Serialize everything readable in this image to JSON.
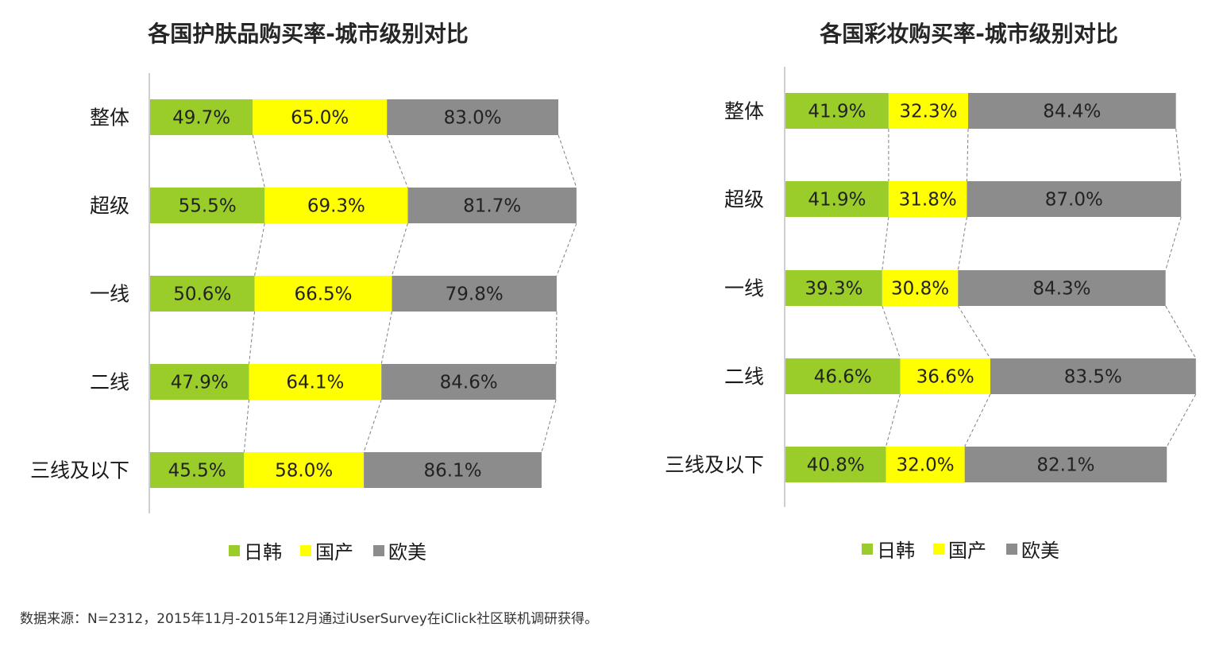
{
  "colors": {
    "jk": "#9ACD2A",
    "domestic": "#FFFF00",
    "west": "#8C8C8C"
  },
  "source": "数据来源：N=2312，2015年11月-2015年12月通过iUserSurvey在iClick社区联机调研获得。",
  "chart_data": [
    {
      "type": "bar",
      "title": "各国护肤品购买率-城市级别对比",
      "categories": [
        "整体",
        "超级",
        "一线",
        "二线",
        "三线及以下"
      ],
      "series": [
        {
          "name": "日韩",
          "values": [
            49.7,
            55.5,
            50.6,
            47.9,
            45.5
          ],
          "labels": [
            "49.7%",
            "55.5%",
            "50.6%",
            "47.9%",
            "45.5%"
          ]
        },
        {
          "name": "国产",
          "values": [
            65.0,
            69.3,
            66.5,
            64.1,
            58.0
          ],
          "labels": [
            "65.0%",
            "69.3%",
            "66.5%",
            "64.1%",
            "58.0%"
          ]
        },
        {
          "name": "欧美",
          "values": [
            83.0,
            81.7,
            79.8,
            84.6,
            86.1
          ],
          "labels": [
            "83.0%",
            "81.7%",
            "79.8%",
            "84.6%",
            "86.1%"
          ]
        }
      ],
      "legend": [
        "日韩",
        "国产",
        "欧美"
      ],
      "stacked": true,
      "legend_position": "bottom"
    },
    {
      "type": "bar",
      "title": "各国彩妆购买率-城市级别对比",
      "categories": [
        "整体",
        "超级",
        "一线",
        "二线",
        "三线及以下"
      ],
      "series": [
        {
          "name": "日韩",
          "values": [
            41.9,
            41.9,
            39.3,
            46.6,
            40.8
          ],
          "labels": [
            "41.9%",
            "41.9%",
            "39.3%",
            "46.6%",
            "40.8%"
          ]
        },
        {
          "name": "国产",
          "values": [
            32.3,
            31.8,
            30.8,
            36.6,
            32.0
          ],
          "labels": [
            "32.3%",
            "31.8%",
            "30.8%",
            "36.6%",
            "32.0%"
          ]
        },
        {
          "name": "欧美",
          "values": [
            84.4,
            87.0,
            84.3,
            83.5,
            82.1
          ],
          "labels": [
            "84.4%",
            "87.0%",
            "84.3%",
            "83.5%",
            "82.1%"
          ]
        }
      ],
      "legend": [
        "日韩",
        "国产",
        "欧美"
      ],
      "stacked": true,
      "legend_position": "bottom"
    }
  ]
}
